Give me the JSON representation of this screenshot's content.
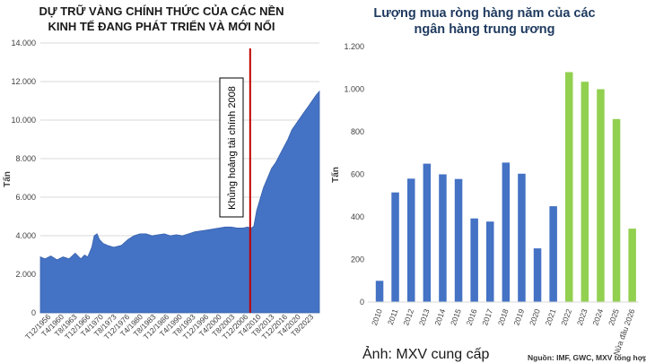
{
  "left_chart": {
    "title": "DỰ TRỮ VÀNG CHÍNH THỨC CỦA CÁC NỀN\nKINH TẾ ĐANG PHÁT TRIỂN VÀ MỚI NỔI",
    "ylabel": "Tấn",
    "annotation": "Khủng hoảng tài chính 2008"
  },
  "right_chart": {
    "title": "Lượng mua ròng hàng năm của các\nngân hàng trung ương",
    "ylabel": "Tấn"
  },
  "caption": "Ảnh: MXV cung cấp",
  "source": "Nguồn: IMF, GWC, MXV tổng hợp",
  "colors": {
    "area_fill": "#4472c4",
    "bar_blue": "#4472c4",
    "bar_green": "#92d050",
    "crisis_line": "#c00000"
  },
  "chart_data": [
    {
      "type": "area",
      "title": "DỰ TRỮ VÀNG CHÍNH THỨC CỦA CÁC NỀN KINH TẾ ĐANG PHÁT TRIỂN VÀ MỚI NỔI",
      "xlabel": "",
      "ylabel": "Tấn",
      "ylim": [
        0,
        14000
      ],
      "yticks": [
        0,
        2000,
        4000,
        6000,
        8000,
        10000,
        12000,
        14000
      ],
      "ytick_labels": [
        "0",
        "2.000",
        "4.000",
        "6.000",
        "8.000",
        "10.000",
        "12.000",
        "14.000"
      ],
      "xtick_labels": [
        "T12/1956",
        "T4/1960",
        "T8/1963",
        "T12/1966",
        "T4/1970",
        "T8/1973",
        "T12/1976",
        "T4/1980",
        "T8/1983",
        "T12/1986",
        "T4/1990",
        "T8/1993",
        "T12/1996",
        "T4/2000",
        "T8/2003",
        "T12/2006",
        "T4/2010",
        "T8/2013",
        "T12/2016",
        "T4/2020",
        "T8/2023"
      ],
      "xlim": [
        1956.9,
        2025.8
      ],
      "vline": {
        "x": 2008.7,
        "label": "Khủng hoảng tài chính 2008"
      },
      "grid": true,
      "series": [
        {
          "x": [
            1956.9,
            1958.0,
            1959.5,
            1961.0,
            1962.5,
            1964.0,
            1965.5,
            1966.9,
            1967.8,
            1968.6,
            1969.6,
            1970.2,
            1970.9,
            1971.5,
            1972.4,
            1973.5,
            1975.0,
            1976.9,
            1978.5,
            1980.0,
            1981.5,
            1983.0,
            1984.5,
            1986.0,
            1987.5,
            1989.0,
            1990.5,
            1992.0,
            1993.5,
            1995.0,
            1996.5,
            1998.0,
            1999.5,
            2001.0,
            2002.5,
            2004.0,
            2005.5,
            2007.0,
            2008.0,
            2009.0,
            2009.6,
            2010.3,
            2011.0,
            2012.0,
            2013.0,
            2014.0,
            2015.0,
            2016.0,
            2017.0,
            2018.0,
            2019.0,
            2020.0,
            2021.0,
            2022.0,
            2023.0,
            2024.0,
            2025.0,
            2025.8
          ],
          "y": [
            2900,
            2800,
            2950,
            2750,
            2900,
            2800,
            3100,
            2800,
            3000,
            2900,
            3400,
            4000,
            4100,
            3800,
            3600,
            3500,
            3400,
            3500,
            3800,
            4000,
            4100,
            4100,
            4000,
            4050,
            4100,
            4000,
            4050,
            4000,
            4100,
            4200,
            4250,
            4300,
            4350,
            4400,
            4450,
            4450,
            4400,
            4400,
            4450,
            4400,
            4500,
            5300,
            5800,
            6500,
            7000,
            7500,
            7800,
            8200,
            8600,
            9000,
            9500,
            9800,
            10100,
            10400,
            10700,
            11000,
            11300,
            11500
          ]
        }
      ]
    },
    {
      "type": "bar",
      "title": "Lượng mua ròng hàng năm của các ngân hàng trung ương",
      "xlabel": "",
      "ylabel": "Tấn",
      "ylim": [
        0,
        1200
      ],
      "yticks": [
        0,
        200,
        400,
        600,
        800,
        1000,
        1200
      ],
      "ytick_labels": [
        "0",
        "200",
        "400",
        "600",
        "800",
        "1.000",
        "1.200"
      ],
      "categories": [
        "2010",
        "2011",
        "2012",
        "2013",
        "2014",
        "2015",
        "2016",
        "2017",
        "2018",
        "2019",
        "2020",
        "2021",
        "2022",
        "2023",
        "2024",
        "2025",
        "Nửa đầu 2026"
      ],
      "values": [
        100,
        515,
        580,
        650,
        600,
        578,
        393,
        378,
        655,
        603,
        252,
        450,
        1080,
        1035,
        1000,
        860,
        345
      ],
      "colors": [
        "#4472c4",
        "#4472c4",
        "#4472c4",
        "#4472c4",
        "#4472c4",
        "#4472c4",
        "#4472c4",
        "#4472c4",
        "#4472c4",
        "#4472c4",
        "#4472c4",
        "#4472c4",
        "#92d050",
        "#92d050",
        "#92d050",
        "#92d050",
        "#92d050"
      ],
      "grid": false
    }
  ]
}
